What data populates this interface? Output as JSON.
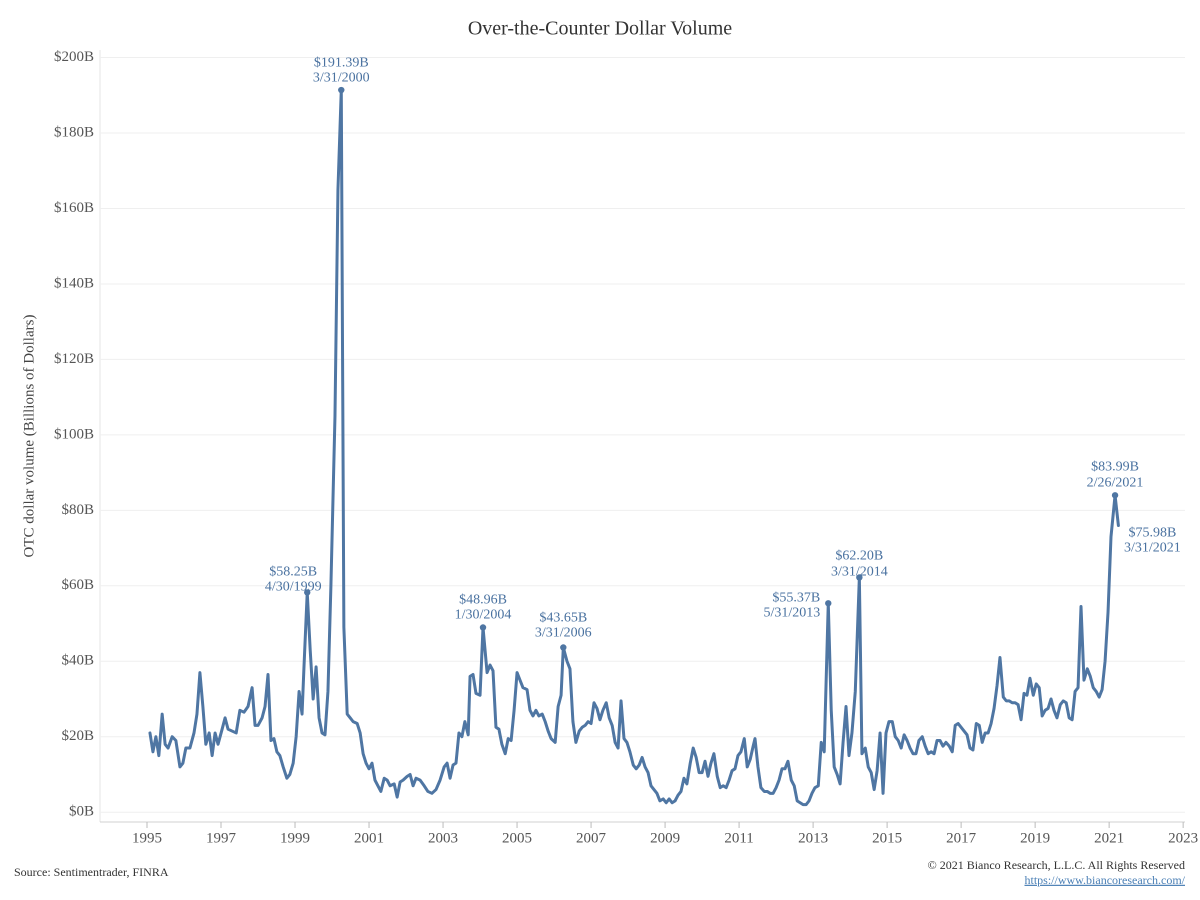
{
  "chart_data": {
    "type": "line",
    "title": "Over-the-Counter Dollar Volume",
    "ylabel": "OTC dollar volume (Billions of Dollars)",
    "xlim": [
      1993.73,
      2023.05
    ],
    "xticks": [
      1995,
      1997,
      1999,
      2001,
      2003,
      2005,
      2007,
      2009,
      2011,
      2013,
      2015,
      2017,
      2019,
      2021,
      2023
    ],
    "ylim": [
      -2.6,
      202
    ],
    "yticks": [
      {
        "value": 0,
        "label": "$0B"
      },
      {
        "value": 20,
        "label": "$20B"
      },
      {
        "value": 40,
        "label": "$40B"
      },
      {
        "value": 60,
        "label": "$60B"
      },
      {
        "value": 80,
        "label": "$80B"
      },
      {
        "value": 100,
        "label": "$100B"
      },
      {
        "value": 120,
        "label": "$120B"
      },
      {
        "value": 140,
        "label": "$140B"
      },
      {
        "value": 160,
        "label": "$160B"
      },
      {
        "value": 180,
        "label": "$180B"
      },
      {
        "value": 200,
        "label": "$200B"
      }
    ],
    "grid": true,
    "series": [
      {
        "color": "#4f76a3",
        "x": [
          1995.08,
          1995.16,
          1995.24,
          1995.32,
          1995.41,
          1995.49,
          1995.57,
          1995.68,
          1995.78,
          1995.89,
          1995.97,
          1996.05,
          1996.16,
          1996.27,
          1996.35,
          1996.43,
          1996.51,
          1996.59,
          1996.68,
          1996.76,
          1996.84,
          1996.92,
          1997.03,
          1997.11,
          1997.19,
          1997.3,
          1997.41,
          1997.51,
          1997.62,
          1997.73,
          1997.84,
          1997.92,
          1998.0,
          1998.11,
          1998.19,
          1998.27,
          1998.35,
          1998.43,
          1998.51,
          1998.59,
          1998.68,
          1998.78,
          1998.86,
          1998.95,
          1999.03,
          1999.11,
          1999.19,
          1999.24,
          1999.33,
          1999.41,
          1999.49,
          1999.57,
          1999.65,
          1999.73,
          1999.81,
          1999.89,
          1999.97,
          2000.08,
          2000.16,
          2000.25,
          2000.32,
          2000.41,
          2000.49,
          2000.57,
          2000.68,
          2000.76,
          2000.84,
          2000.92,
          2001.0,
          2001.08,
          2001.16,
          2001.24,
          2001.32,
          2001.41,
          2001.49,
          2001.57,
          2001.68,
          2001.76,
          2001.84,
          2001.92,
          2002.03,
          2002.11,
          2002.19,
          2002.27,
          2002.38,
          2002.49,
          2002.59,
          2002.7,
          2002.81,
          2002.92,
          2003.03,
          2003.11,
          2003.19,
          2003.27,
          2003.35,
          2003.43,
          2003.51,
          2003.59,
          2003.68,
          2003.73,
          2003.81,
          2003.89,
          2004.0,
          2004.08,
          2004.19,
          2004.27,
          2004.35,
          2004.43,
          2004.51,
          2004.59,
          2004.68,
          2004.76,
          2004.84,
          2004.92,
          2005.0,
          2005.08,
          2005.16,
          2005.27,
          2005.35,
          2005.43,
          2005.51,
          2005.59,
          2005.68,
          2005.76,
          2005.84,
          2005.92,
          2006.03,
          2006.11,
          2006.19,
          2006.25,
          2006.35,
          2006.43,
          2006.51,
          2006.59,
          2006.68,
          2006.76,
          2006.84,
          2006.92,
          2007.0,
          2007.08,
          2007.16,
          2007.24,
          2007.32,
          2007.41,
          2007.49,
          2007.57,
          2007.65,
          2007.73,
          2007.81,
          2007.89,
          2007.97,
          2008.05,
          2008.14,
          2008.22,
          2008.3,
          2008.38,
          2008.46,
          2008.54,
          2008.62,
          2008.7,
          2008.78,
          2008.86,
          2008.95,
          2009.03,
          2009.11,
          2009.19,
          2009.27,
          2009.35,
          2009.43,
          2009.51,
          2009.59,
          2009.68,
          2009.76,
          2009.84,
          2009.92,
          2010.0,
          2010.08,
          2010.16,
          2010.24,
          2010.32,
          2010.41,
          2010.49,
          2010.57,
          2010.65,
          2010.73,
          2010.81,
          2010.89,
          2010.97,
          2011.05,
          2011.14,
          2011.22,
          2011.3,
          2011.38,
          2011.43,
          2011.51,
          2011.59,
          2011.68,
          2011.76,
          2011.84,
          2011.92,
          2012.0,
          2012.08,
          2012.16,
          2012.24,
          2012.32,
          2012.41,
          2012.49,
          2012.57,
          2012.65,
          2012.73,
          2012.81,
          2012.89,
          2012.97,
          2013.05,
          2013.14,
          2013.22,
          2013.3,
          2013.41,
          2013.49,
          2013.57,
          2013.65,
          2013.73,
          2013.81,
          2013.89,
          2013.97,
          2014.05,
          2014.14,
          2014.25,
          2014.32,
          2014.41,
          2014.49,
          2014.57,
          2014.65,
          2014.73,
          2014.81,
          2014.89,
          2014.97,
          2015.05,
          2015.14,
          2015.22,
          2015.3,
          2015.38,
          2015.46,
          2015.54,
          2015.62,
          2015.7,
          2015.78,
          2015.86,
          2015.95,
          2016.03,
          2016.11,
          2016.19,
          2016.27,
          2016.35,
          2016.43,
          2016.51,
          2016.59,
          2016.68,
          2016.76,
          2016.84,
          2016.92,
          2017.0,
          2017.08,
          2017.16,
          2017.24,
          2017.32,
          2017.41,
          2017.49,
          2017.57,
          2017.65,
          2017.73,
          2017.81,
          2017.89,
          2017.97,
          2018.05,
          2018.14,
          2018.22,
          2018.3,
          2018.38,
          2018.46,
          2018.54,
          2018.62,
          2018.7,
          2018.78,
          2018.86,
          2018.95,
          2019.03,
          2019.11,
          2019.19,
          2019.27,
          2019.35,
          2019.43,
          2019.51,
          2019.59,
          2019.68,
          2019.76,
          2019.84,
          2019.92,
          2020.0,
          2020.08,
          2020.16,
          2020.24,
          2020.32,
          2020.41,
          2020.49,
          2020.57,
          2020.65,
          2020.73,
          2020.81,
          2020.89,
          2020.97,
          2021.05,
          2021.16,
          2021.25
        ],
        "values": [
          21,
          16,
          20,
          15,
          26,
          18,
          17,
          20,
          19,
          12,
          13,
          17,
          17,
          21,
          26,
          37,
          28,
          18,
          21,
          15,
          21,
          18,
          22,
          25,
          22,
          21.5,
          21,
          27,
          26.5,
          28,
          33,
          23,
          23,
          25,
          28,
          36.5,
          19,
          19.5,
          16,
          15,
          12,
          9,
          10,
          13,
          20,
          32,
          26,
          38,
          58.25,
          43,
          30,
          38.5,
          25,
          21,
          20.5,
          32,
          60,
          105,
          165,
          191.39,
          49,
          26,
          25,
          24,
          23.5,
          21,
          15.5,
          13,
          11.5,
          13,
          8.5,
          7,
          5.5,
          9,
          8.5,
          7,
          7.5,
          4,
          8,
          8.5,
          9.5,
          10,
          7,
          9,
          8.5,
          7,
          5.5,
          5,
          6,
          8.5,
          12,
          13,
          9,
          12.5,
          13,
          21,
          20,
          24,
          20.5,
          36,
          36.5,
          31.5,
          31,
          48.96,
          37,
          39,
          37.5,
          22.5,
          22,
          18,
          15.5,
          19.5,
          19,
          27,
          37,
          35,
          33,
          32.5,
          27,
          25.5,
          27,
          25.5,
          26,
          24,
          21.5,
          19.5,
          18.5,
          28,
          31,
          43.65,
          40,
          38,
          24,
          18.5,
          21.5,
          22.5,
          23,
          24,
          23.5,
          29,
          27.5,
          24.5,
          27,
          29,
          25,
          23,
          18.5,
          17,
          29.5,
          19.5,
          18.5,
          16,
          12.5,
          11.5,
          12.5,
          14.5,
          12,
          10.5,
          7,
          6,
          5,
          3,
          3.5,
          2.5,
          3.5,
          2.5,
          3,
          4.5,
          5.5,
          9,
          7.5,
          13,
          17,
          14.5,
          10.5,
          10.5,
          13.5,
          9.5,
          13,
          15.5,
          9.5,
          6.5,
          7,
          6.5,
          8.5,
          11,
          11.5,
          15,
          16,
          19.5,
          12,
          14,
          17.5,
          19.5,
          12,
          6.5,
          5.5,
          5.5,
          5,
          5,
          6.5,
          8.5,
          11.5,
          11.5,
          13.5,
          8.5,
          7,
          3,
          2.5,
          2,
          2,
          3,
          5,
          6.5,
          7,
          18.5,
          16,
          55.37,
          27,
          12,
          10,
          7.5,
          18.5,
          28,
          15,
          21,
          32,
          62.2,
          15.5,
          17,
          12,
          10.5,
          6,
          11,
          21,
          5,
          21,
          24,
          24,
          20,
          19,
          17,
          20.5,
          19,
          17,
          15.5,
          15.5,
          19,
          20,
          17.5,
          15.5,
          16,
          15.5,
          19,
          19,
          17.5,
          18.5,
          17.5,
          16,
          23,
          23.5,
          22.5,
          21.5,
          20.5,
          17,
          16.5,
          23.5,
          23,
          18.5,
          21,
          21,
          23.5,
          27.5,
          33.5,
          41,
          30.5,
          29.5,
          29.5,
          29,
          29,
          28.5,
          24.5,
          31.5,
          31,
          35.5,
          31,
          34,
          33,
          25.5,
          27,
          27.5,
          30,
          27,
          25,
          28.5,
          29.5,
          29,
          25,
          24.5,
          32,
          33,
          54.5,
          35,
          38,
          36,
          33,
          32,
          30.5,
          32.5,
          40,
          53,
          73,
          83.99,
          75.98
        ]
      }
    ],
    "annotations": [
      {
        "x": 1999.33,
        "value": 58.25,
        "label": "$58.25B",
        "date": "4/30/1999"
      },
      {
        "x": 2000.25,
        "value": 191.39,
        "label": "$191.39B",
        "date": "3/31/2000"
      },
      {
        "x": 2004.08,
        "value": 48.96,
        "label": "$48.96B",
        "date": "1/30/2004"
      },
      {
        "x": 2006.25,
        "value": 43.65,
        "label": "$43.65B",
        "date": "3/31/2006"
      },
      {
        "x": 2013.41,
        "value": 55.37,
        "label": "$55.37B",
        "date": "5/31/2013"
      },
      {
        "x": 2014.25,
        "value": 62.2,
        "label": "$62.20B",
        "date": "3/31/2014"
      },
      {
        "x": 2021.16,
        "value": 83.99,
        "label": "$83.99B",
        "date": "2/26/2021"
      },
      {
        "x": 2021.25,
        "value": 75.98,
        "label": "$75.98B",
        "date": "3/31/2021"
      }
    ]
  },
  "footer": {
    "source": "Source: Sentimentrader, FINRA",
    "copyright": "© 2021 Bianco Research, L.L.C. All Rights Reserved",
    "url": "https://www.biancoresearch.com/"
  }
}
